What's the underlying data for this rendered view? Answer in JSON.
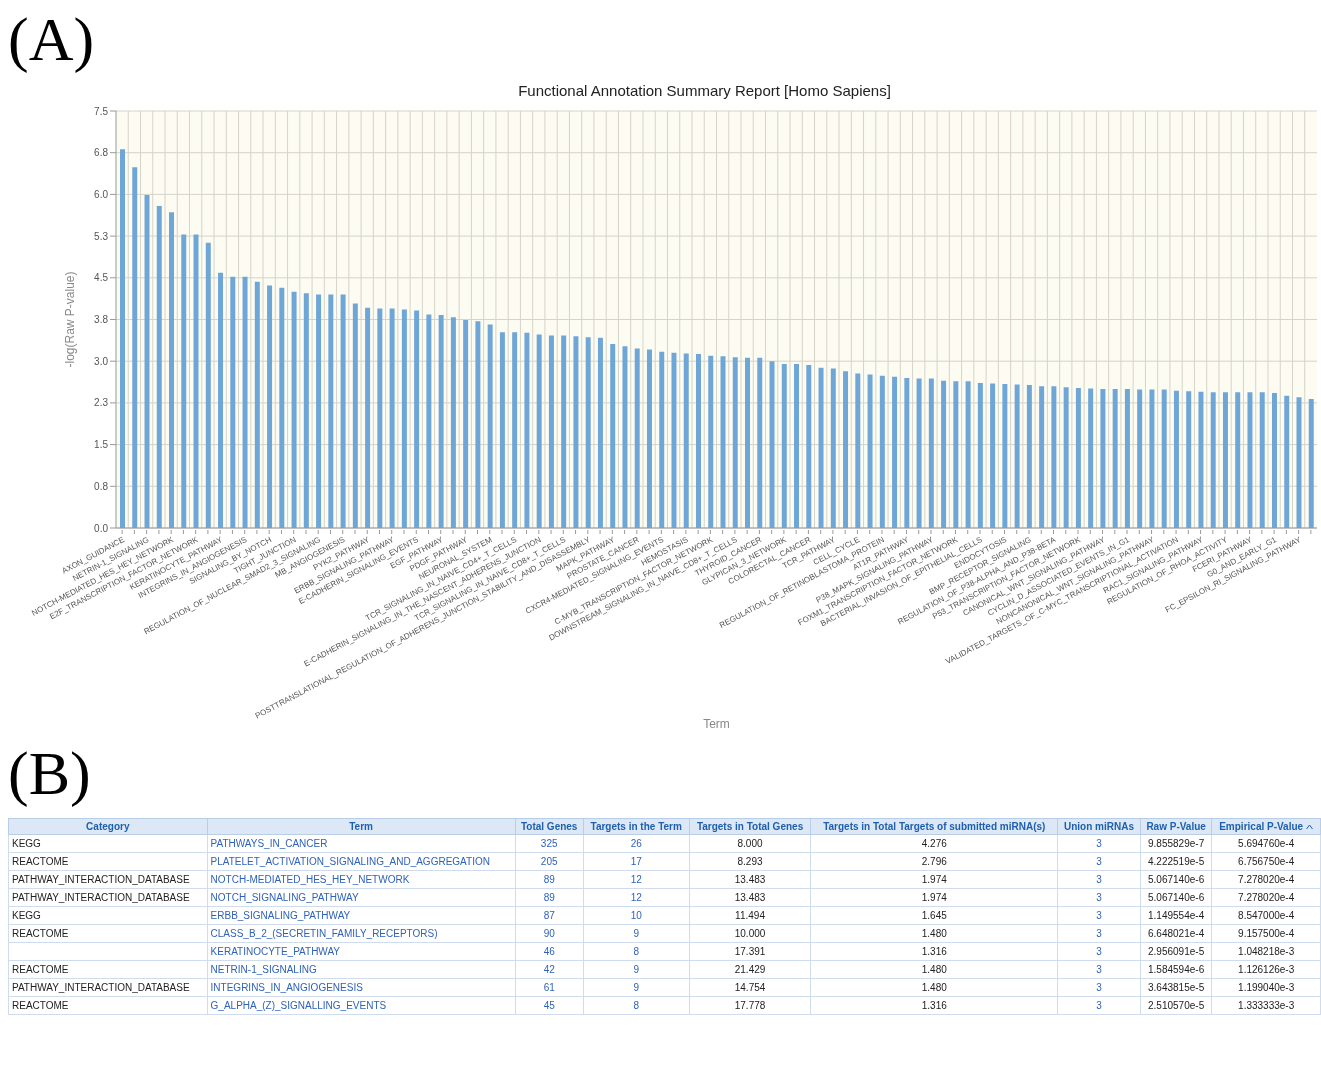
{
  "chart_data": [
    {
      "type": "bar",
      "title": "Functional Annotation Summary Report [Homo Sapiens]",
      "xlabel": "Term",
      "ylabel": "-log(Raw P-value)",
      "annotations": [
        "(A)"
      ],
      "color": "#6fa6d8",
      "grid": true,
      "legend": false,
      "categories": [
        "AXON_GUIDANCE",
        null,
        "NETRIN-1_SIGNALING",
        null,
        "NOTCH-MEDIATED_HES_HEY_NETWORK",
        null,
        "E2F_TRANSCRIPTION_FACTOR_NETWORK",
        null,
        "KERATINOCYTE_PATHWAY",
        null,
        "INTEGRINS_IN_ANGIOGENESIS",
        null,
        "SIGNALING_BY_NOTCH",
        null,
        "TIGHT_JUNCTION",
        null,
        "REGULATION_OF_NUCLEAR_SMAD2_3_SIGNALING",
        null,
        "MB_ANGIOGENESIS",
        null,
        "PYK2_PATHWAY",
        null,
        "ERBB_SIGNALING_PATHWAY",
        null,
        "E-CADHERIN_SIGNALING_EVENTS",
        null,
        "EGF_PATHWAY",
        null,
        "PDGF_PATHWAY",
        null,
        "NEURONAL_SYSTEM",
        null,
        "TCR_SIGNALING_IN_NAIVE_CD4+_T_CELLS",
        null,
        "E-CADHERIN_SIGNALING_IN_THE_NASCENT_ADHERENS_JUNCTION",
        null,
        "TCR_SIGNALING_IN_NAIVE_CD8+_T_CELLS",
        null,
        "POSTTRANSLATIONAL_REGULATION_OF_ADHERENS_JUNCTION_STABILITY_AND_DISASSEMBLY",
        null,
        "MAPK_PATHWAY",
        null,
        "PROSTATE_CANCER",
        null,
        "CXCR4-MEDIATED_SIGNALING_EVENTS",
        null,
        "HEMOSTASIS",
        null,
        "C-MYB_TRANSCRIPTION_FACTOR_NETWORK",
        null,
        "DOWNSTREAM_SIGNALING_IN_NAIVE_CD8+_T_CELLS",
        null,
        "THYROID_CANCER",
        null,
        "GLYPICAN_3_NETWORK",
        null,
        "COLORECTAL_CANCER",
        null,
        "TCR_PATHWAY",
        null,
        "CELL_CYCLE",
        null,
        "REGULATION_OF_RETINOBLASTOMA_PROTEIN",
        null,
        "AT1R_PATHWAY",
        null,
        "P38_MAPK_SIGNALING_PATHWAY",
        null,
        "FOXM1_TRANSCRIPTION_FACTOR_NETWORK",
        null,
        "BACTERIAL_INVASION_OF_EPITHELIAL_CELLS",
        null,
        "ENDOCYTOSIS",
        null,
        "BMP_RECEPTOR_SIGNALING",
        null,
        "REGULATION_OF_P38-ALPHA_AND_P38-BETA",
        null,
        "P53_TRANSCRIPTION_FACTOR_NETWORK",
        null,
        "CANONICAL_WNT_SIGNALING_PATHWAY",
        null,
        "CYCLIN_D_ASSOCIATED_EVENTS_IN_G1",
        null,
        "NONCANONICAL_WNT_SIGNALING_PATHWAY",
        null,
        "VALIDATED_TARGETS_OF_C-MYC_TRANSCRIPTIONAL_ACTIVATION",
        null,
        "RAC1_SIGNALING_PATHWAY",
        null,
        "REGULATION_OF_RHOA_ACTIVITY",
        null,
        "FCERI_PATHWAY",
        null,
        "G0_AND_EARLY_G1",
        null,
        "FC_EPSILON_RI_SIGNALING_PATHWAY",
        null
      ],
      "values": [
        6.81,
        6.49,
        5.99,
        5.79,
        5.68,
        5.28,
        5.28,
        5.13,
        4.59,
        4.52,
        4.52,
        4.43,
        4.36,
        4.32,
        4.25,
        4.22,
        4.2,
        4.2,
        4.2,
        4.04,
        3.96,
        3.95,
        3.95,
        3.93,
        3.91,
        3.84,
        3.83,
        3.79,
        3.74,
        3.72,
        3.66,
        3.52,
        3.52,
        3.51,
        3.48,
        3.46,
        3.46,
        3.45,
        3.43,
        3.42,
        3.31,
        3.27,
        3.23,
        3.21,
        3.17,
        3.15,
        3.14,
        3.13,
        3.1,
        3.09,
        3.07,
        3.06,
        3.06,
        3.0,
        2.95,
        2.95,
        2.93,
        2.88,
        2.87,
        2.82,
        2.78,
        2.76,
        2.74,
        2.72,
        2.7,
        2.69,
        2.69,
        2.65,
        2.64,
        2.64,
        2.61,
        2.6,
        2.59,
        2.58,
        2.57,
        2.55,
        2.55,
        2.53,
        2.52,
        2.51,
        2.5,
        2.5,
        2.5,
        2.49,
        2.49,
        2.49,
        2.47,
        2.46,
        2.45,
        2.44,
        2.44,
        2.44,
        2.44,
        2.44,
        2.43,
        2.38,
        2.35,
        2.32
      ],
      "ylim": [
        0,
        7.5
      ],
      "yticks": [
        {
          "value": 0,
          "label": "0.0"
        },
        {
          "value": 0.75,
          "label": "0.8"
        },
        {
          "value": 1.5,
          "label": "1.5"
        },
        {
          "value": 2.25,
          "label": "2.3"
        },
        {
          "value": 3,
          "label": "3.0"
        },
        {
          "value": 3.75,
          "label": "3.8"
        },
        {
          "value": 4.5,
          "label": "4.5"
        },
        {
          "value": 5.25,
          "label": "5.3"
        },
        {
          "value": 6,
          "label": "6.0"
        },
        {
          "value": 6.75,
          "label": "6.8"
        },
        {
          "value": 7.5,
          "label": "7.5"
        }
      ]
    },
    {
      "type": "other",
      "annotations": [
        "(B)"
      ],
      "categories": [
        "Category",
        "Term",
        "Total Genes",
        "Targets in the Term",
        "Targets in Total Genes",
        "Targets in Total Targets of submitted miRNA(s)",
        "Union miRNAs",
        "Raw P-Value",
        "Empirical P-Value"
      ],
      "cell_labels": [
        [
          "KEGG",
          "PATHWAYS_IN_CANCER",
          "325",
          "26",
          "8.000",
          "4.276",
          "3",
          "9.855829e-7",
          "5.694760e-4"
        ],
        [
          "REACTOME",
          "PLATELET_ACTIVATION_SIGNALING_AND_AGGREGATION",
          "205",
          "17",
          "8.293",
          "2.796",
          "3",
          "4.222519e-5",
          "6.756750e-4"
        ],
        [
          "PATHWAY_INTERACTION_DATABASE",
          "NOTCH-MEDIATED_HES_HEY_NETWORK",
          "89",
          "12",
          "13.483",
          "1.974",
          "3",
          "5.067140e-6",
          "7.278020e-4"
        ],
        [
          "PATHWAY_INTERACTION_DATABASE",
          "NOTCH_SIGNALING_PATHWAY",
          "89",
          "12",
          "13.483",
          "1.974",
          "3",
          "5.067140e-6",
          "7.278020e-4"
        ],
        [
          "KEGG",
          "ERBB_SIGNALING_PATHWAY",
          "87",
          "10",
          "11.494",
          "1.645",
          "3",
          "1.149554e-4",
          "8.547000e-4"
        ],
        [
          "REACTOME",
          "CLASS_B_2_(SECRETIN_FAMILY_RECEPTORS)",
          "90",
          "9",
          "10.000",
          "1.480",
          "3",
          "6.648021e-4",
          "9.157500e-4"
        ],
        [
          null,
          "KERATINOCYTE_PATHWAY",
          "46",
          "8",
          "17.391",
          "1.316",
          "3",
          "2.956091e-5",
          "1.048218e-3"
        ],
        [
          "REACTOME",
          "NETRIN-1_SIGNALING",
          "42",
          "9",
          "21.429",
          "1.480",
          "3",
          "1.584594e-6",
          "1.126126e-3"
        ],
        [
          "PATHWAY_INTERACTION_DATABASE",
          "INTEGRINS_IN_ANGIOGENESIS",
          "61",
          "9",
          "14.754",
          "1.480",
          "3",
          "3.643815e-5",
          "1.199040e-3"
        ],
        [
          "REACTOME",
          "G_ALPHA_(Z)_SIGNALLING_EVENTS",
          "45",
          "8",
          "17.778",
          "1.316",
          "3",
          "2.510570e-5",
          "1.333333e-3"
        ]
      ]
    }
  ]
}
